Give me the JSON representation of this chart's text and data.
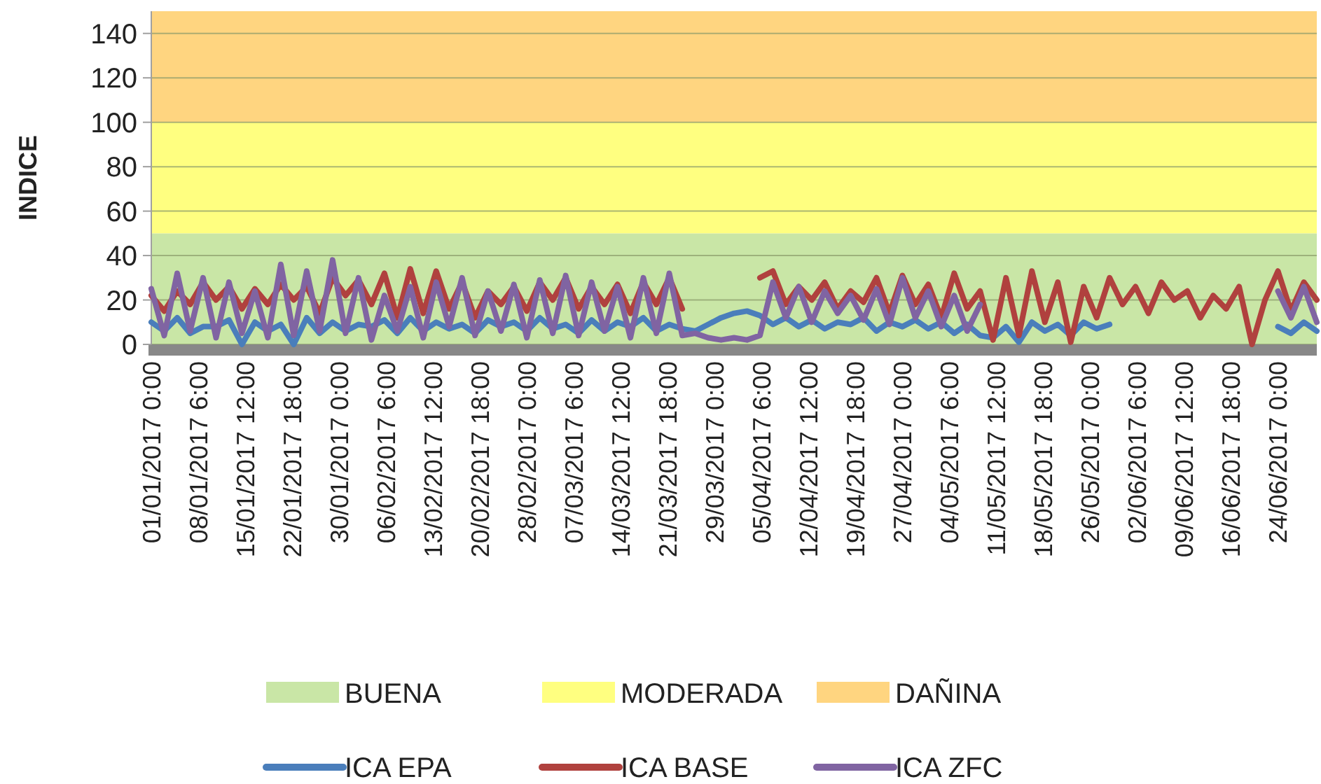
{
  "chart_data": {
    "type": "line",
    "ylabel": "INDICE",
    "ylim": [
      0,
      150
    ],
    "yticks": [
      0,
      20,
      40,
      60,
      80,
      100,
      120,
      140
    ],
    "xlim": [
      "2017-01-01",
      "2017-06-30"
    ],
    "xticks": [
      {
        "value": "2017-01-01T00:00",
        "label": "01/01/2017 0:00"
      },
      {
        "value": "2017-01-08T06:00",
        "label": "08/01/2017 6:00"
      },
      {
        "value": "2017-01-15T12:00",
        "label": "15/01/2017 12:00"
      },
      {
        "value": "2017-01-22T18:00",
        "label": "22/01/2017 18:00"
      },
      {
        "value": "2017-01-30T00:00",
        "label": "30/01/2017 0:00"
      },
      {
        "value": "2017-02-06T06:00",
        "label": "06/02/2017 6:00"
      },
      {
        "value": "2017-02-13T12:00",
        "label": "13/02/2017 12:00"
      },
      {
        "value": "2017-02-20T18:00",
        "label": "20/02/2017 18:00"
      },
      {
        "value": "2017-02-28T00:00",
        "label": "28/02/2017 0:00"
      },
      {
        "value": "2017-03-07T06:00",
        "label": "07/03/2017 6:00"
      },
      {
        "value": "2017-03-14T12:00",
        "label": "14/03/2017 12:00"
      },
      {
        "value": "2017-03-21T18:00",
        "label": "21/03/2017 18:00"
      },
      {
        "value": "2017-03-29T00:00",
        "label": "29/03/2017 0:00"
      },
      {
        "value": "2017-04-05T06:00",
        "label": "05/04/2017 6:00"
      },
      {
        "value": "2017-04-12T12:00",
        "label": "12/04/2017 12:00"
      },
      {
        "value": "2017-04-19T18:00",
        "label": "19/04/2017 18:00"
      },
      {
        "value": "2017-04-27T00:00",
        "label": "27/04/2017 0:00"
      },
      {
        "value": "2017-05-04T06:00",
        "label": "04/05/2017 6:00"
      },
      {
        "value": "2017-05-11T12:00",
        "label": "11/05/2017 12:00"
      },
      {
        "value": "2017-05-18T18:00",
        "label": "18/05/2017 18:00"
      },
      {
        "value": "2017-05-26T00:00",
        "label": "26/05/2017 0:00"
      },
      {
        "value": "2017-06-02T06:00",
        "label": "02/06/2017 6:00"
      },
      {
        "value": "2017-06-09T12:00",
        "label": "09/06/2017 12:00"
      },
      {
        "value": "2017-06-16T18:00",
        "label": "16/06/2017 18:00"
      },
      {
        "value": "2017-06-24T00:00",
        "label": "24/06/2017 0:00"
      }
    ],
    "x": [
      "2017-01-01",
      "2017-01-03",
      "2017-01-05",
      "2017-01-07",
      "2017-01-09",
      "2017-01-11",
      "2017-01-13",
      "2017-01-15",
      "2017-01-17",
      "2017-01-19",
      "2017-01-21",
      "2017-01-23",
      "2017-01-25",
      "2017-01-27",
      "2017-01-29",
      "2017-01-31",
      "2017-02-02",
      "2017-02-04",
      "2017-02-06",
      "2017-02-08",
      "2017-02-10",
      "2017-02-12",
      "2017-02-14",
      "2017-02-16",
      "2017-02-18",
      "2017-02-20",
      "2017-02-22",
      "2017-02-24",
      "2017-02-26",
      "2017-02-28",
      "2017-03-02",
      "2017-03-04",
      "2017-03-06",
      "2017-03-08",
      "2017-03-10",
      "2017-03-12",
      "2017-03-14",
      "2017-03-16",
      "2017-03-18",
      "2017-03-20",
      "2017-03-22",
      "2017-03-24",
      "2017-03-26",
      "2017-03-28",
      "2017-03-30",
      "2017-04-01",
      "2017-04-03",
      "2017-04-05",
      "2017-04-07",
      "2017-04-09",
      "2017-04-11",
      "2017-04-13",
      "2017-04-15",
      "2017-04-17",
      "2017-04-19",
      "2017-04-21",
      "2017-04-23",
      "2017-04-25",
      "2017-04-27",
      "2017-04-29",
      "2017-05-01",
      "2017-05-03",
      "2017-05-05",
      "2017-05-07",
      "2017-05-09",
      "2017-05-11",
      "2017-05-13",
      "2017-05-15",
      "2017-05-17",
      "2017-05-19",
      "2017-05-21",
      "2017-05-23",
      "2017-05-25",
      "2017-05-27",
      "2017-05-29",
      "2017-05-31",
      "2017-06-02",
      "2017-06-04",
      "2017-06-06",
      "2017-06-08",
      "2017-06-10",
      "2017-06-12",
      "2017-06-14",
      "2017-06-16",
      "2017-06-18",
      "2017-06-20",
      "2017-06-22",
      "2017-06-24",
      "2017-06-26",
      "2017-06-28",
      "2017-06-30"
    ],
    "series": [
      {
        "name": "ICA EPA",
        "color": "#4a7ebb",
        "values": [
          10,
          6,
          12,
          5,
          8,
          8,
          11,
          0,
          10,
          6,
          9,
          0,
          12,
          5,
          10,
          6,
          9,
          8,
          11,
          5,
          12,
          6,
          10,
          7,
          9,
          5,
          11,
          8,
          10,
          6,
          12,
          7,
          9,
          5,
          11,
          6,
          10,
          8,
          12,
          6,
          9,
          7,
          6,
          9,
          12,
          14,
          15,
          13,
          9,
          12,
          8,
          11,
          7,
          10,
          9,
          12,
          6,
          10,
          8,
          11,
          7,
          10,
          5,
          9,
          4,
          3,
          8,
          1,
          10,
          6,
          9,
          4,
          10,
          7,
          9,
          null,
          null,
          null,
          null,
          null,
          null,
          null,
          null,
          null,
          null,
          null,
          null,
          8,
          5,
          10,
          6
        ]
      },
      {
        "name": "ICA BASE",
        "color": "#b0413e",
        "values": [
          22,
          15,
          24,
          18,
          28,
          20,
          26,
          16,
          25,
          18,
          27,
          20,
          26,
          14,
          30,
          22,
          29,
          18,
          32,
          12,
          34,
          14,
          33,
          16,
          28,
          12,
          24,
          18,
          26,
          15,
          28,
          20,
          30,
          16,
          26,
          18,
          27,
          14,
          28,
          18,
          30,
          16,
          null,
          null,
          null,
          null,
          null,
          30,
          33,
          18,
          26,
          20,
          28,
          16,
          24,
          19,
          30,
          14,
          31,
          18,
          27,
          12,
          32,
          16,
          24,
          2,
          30,
          4,
          33,
          10,
          28,
          1,
          26,
          12,
          30,
          18,
          26,
          14,
          28,
          20,
          24,
          12,
          22,
          16,
          26,
          0,
          20,
          33,
          15,
          28,
          20
        ]
      },
      {
        "name": "ICA ZFC",
        "color": "#8064a2",
        "values": [
          25,
          4,
          32,
          6,
          30,
          3,
          28,
          5,
          24,
          3,
          36,
          4,
          33,
          6,
          38,
          5,
          30,
          2,
          22,
          6,
          26,
          3,
          28,
          8,
          30,
          4,
          24,
          6,
          27,
          3,
          29,
          5,
          31,
          4,
          28,
          6,
          26,
          3,
          30,
          5,
          32,
          4,
          5,
          3,
          2,
          3,
          2,
          4,
          28,
          12,
          26,
          10,
          24,
          14,
          22,
          11,
          25,
          9,
          30,
          12,
          24,
          8,
          22,
          6,
          18,
          null,
          null,
          null,
          null,
          null,
          null,
          null,
          null,
          null,
          null,
          null,
          null,
          null,
          null,
          null,
          null,
          null,
          null,
          null,
          null,
          null,
          null,
          24,
          12,
          26,
          10
        ]
      }
    ],
    "bands": [
      {
        "axis": "y",
        "from": 0,
        "to": 50,
        "label": "BUENA",
        "color": "#c9e6a6"
      },
      {
        "axis": "y",
        "from": 50,
        "to": 100,
        "label": "MODERADA",
        "color": "#ffff80"
      },
      {
        "axis": "y",
        "from": 100,
        "to": 150,
        "label": "DAÑINA",
        "color": "#ffd580"
      }
    ],
    "grid": "y",
    "legend": "bottom",
    "line_style": "solid",
    "marker": "none"
  }
}
